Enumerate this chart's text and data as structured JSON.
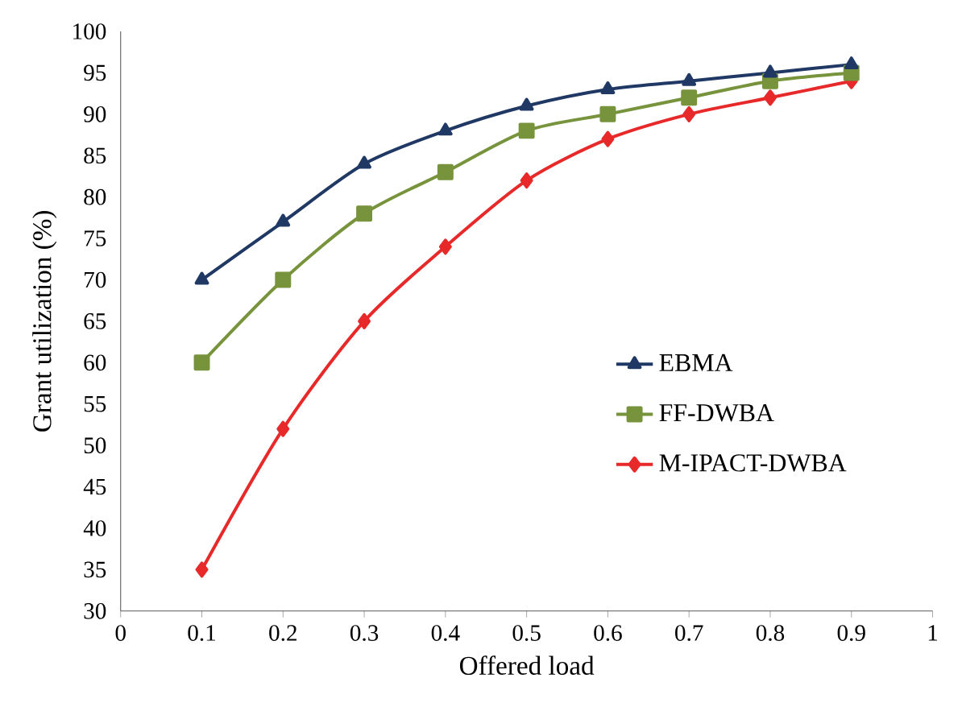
{
  "chart_data": {
    "type": "line",
    "xlabel": "Offered load",
    "ylabel": "Grant utilization  (%)",
    "xlim": [
      0,
      1
    ],
    "xticks": [
      0,
      0.1,
      0.2,
      0.3,
      0.4,
      0.5,
      0.6,
      0.7,
      0.8,
      0.9,
      1
    ],
    "ylim": [
      30,
      100
    ],
    "yticks": [
      30,
      35,
      40,
      45,
      50,
      55,
      60,
      65,
      70,
      75,
      80,
      85,
      90,
      95,
      100
    ],
    "x": [
      0.1,
      0.2,
      0.3,
      0.4,
      0.5,
      0.6,
      0.7,
      0.8,
      0.9
    ],
    "grid": false,
    "legend": "right",
    "line_style": "solid",
    "series": [
      {
        "name": "EBMA",
        "color": "#203864",
        "marker": "triangle",
        "values": [
          70,
          77,
          84,
          88,
          91,
          93,
          94,
          95,
          96
        ]
      },
      {
        "name": "FF-DWBA",
        "color": "#77933c",
        "marker": "square",
        "values": [
          60,
          70,
          78,
          83,
          88,
          90,
          92,
          94,
          95
        ]
      },
      {
        "name": "M-IPACT-DWBA",
        "color": "#e8292a",
        "marker": "diamond",
        "values": [
          35,
          52,
          65,
          74,
          82,
          87,
          90,
          92,
          94
        ]
      }
    ]
  }
}
